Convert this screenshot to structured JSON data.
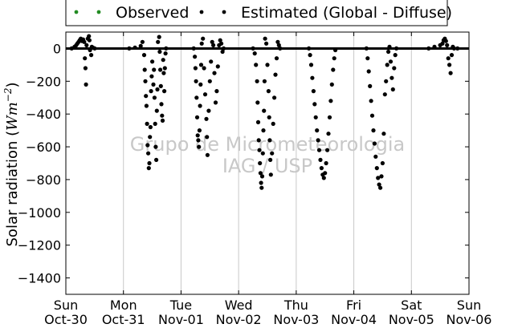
{
  "chart_data": {
    "type": "scatter",
    "title": "",
    "xlabel": "",
    "ylabel_prefix": "Solar radiation (",
    "ylabel_unit_base": "Wm",
    "ylabel_unit_exp": "−2",
    "ylabel_suffix": ")",
    "ylim": [
      -1500,
      100
    ],
    "xlim": [
      0,
      7
    ],
    "grid": "vertical",
    "legend_placement": "top-center",
    "watermark": [
      "Grupo de Micrometeorologia",
      "IAG / USP"
    ],
    "y_ticks": [
      0,
      -200,
      -400,
      -600,
      -800,
      -1000,
      -1200,
      -1400
    ],
    "x_ticks": [
      {
        "pos": 0,
        "day": "Sun",
        "date": "Oct-30"
      },
      {
        "pos": 1,
        "day": "Mon",
        "date": "Oct-31"
      },
      {
        "pos": 2,
        "day": "Tue",
        "date": "Nov-01"
      },
      {
        "pos": 3,
        "day": "Wed",
        "date": "Nov-02"
      },
      {
        "pos": 4,
        "day": "Thu",
        "date": "Nov-03"
      },
      {
        "pos": 5,
        "day": "Fri",
        "date": "Nov-04"
      },
      {
        "pos": 6,
        "day": "Sat",
        "date": "Nov-05"
      },
      {
        "pos": 7,
        "day": "Sun",
        "date": "Nov-06"
      }
    ],
    "series": [
      {
        "name": "Observed",
        "color": "#228b22",
        "points": []
      },
      {
        "name": "Estimated (Global - Diffuse)",
        "color": "#000000",
        "points": [
          [
            0.1,
            0
          ],
          [
            0.15,
            10
          ],
          [
            0.18,
            20
          ],
          [
            0.2,
            30
          ],
          [
            0.22,
            40
          ],
          [
            0.24,
            50
          ],
          [
            0.26,
            60
          ],
          [
            0.28,
            45
          ],
          [
            0.3,
            55
          ],
          [
            0.32,
            40
          ],
          [
            0.33,
            -60
          ],
          [
            0.34,
            -120
          ],
          [
            0.35,
            -220
          ],
          [
            0.36,
            20
          ],
          [
            0.38,
            60
          ],
          [
            0.4,
            75
          ],
          [
            0.41,
            50
          ],
          [
            0.42,
            -10
          ],
          [
            0.44,
            -40
          ],
          [
            0.45,
            10
          ],
          [
            0.47,
            5
          ],
          [
            0.5,
            0
          ],
          [
            1.1,
            0
          ],
          [
            1.2,
            5
          ],
          [
            1.3,
            15
          ],
          [
            1.33,
            40
          ],
          [
            1.36,
            -40
          ],
          [
            1.37,
            -130
          ],
          [
            1.38,
            -200
          ],
          [
            1.39,
            -290
          ],
          [
            1.4,
            -350
          ],
          [
            1.41,
            -460
          ],
          [
            1.42,
            -590
          ],
          [
            1.43,
            -640
          ],
          [
            1.44,
            -730
          ],
          [
            1.45,
            -700
          ],
          [
            1.46,
            -540
          ],
          [
            1.47,
            -480
          ],
          [
            1.48,
            -260
          ],
          [
            1.49,
            -170
          ],
          [
            1.5,
            -80
          ],
          [
            1.52,
            -220
          ],
          [
            1.53,
            -130
          ],
          [
            1.54,
            -300
          ],
          [
            1.55,
            -460
          ],
          [
            1.56,
            -600
          ],
          [
            1.57,
            -680
          ],
          [
            1.58,
            -380
          ],
          [
            1.59,
            -250
          ],
          [
            1.6,
            40
          ],
          [
            1.62,
            70
          ],
          [
            1.63,
            -20
          ],
          [
            1.64,
            -130
          ],
          [
            1.65,
            -230
          ],
          [
            1.66,
            -340
          ],
          [
            1.67,
            -410
          ],
          [
            1.68,
            -440
          ],
          [
            1.69,
            -70
          ],
          [
            1.7,
            -150
          ],
          [
            1.71,
            -260
          ],
          [
            1.72,
            -120
          ],
          [
            1.73,
            -30
          ],
          [
            1.74,
            0
          ],
          [
            2.22,
            0
          ],
          [
            2.24,
            -50
          ],
          [
            2.25,
            -120
          ],
          [
            2.26,
            -200
          ],
          [
            2.27,
            -300
          ],
          [
            2.28,
            -420
          ],
          [
            2.29,
            -530
          ],
          [
            2.3,
            -560
          ],
          [
            2.31,
            -600
          ],
          [
            2.32,
            -500
          ],
          [
            2.33,
            -350
          ],
          [
            2.34,
            -220
          ],
          [
            2.35,
            -100
          ],
          [
            2.36,
            30
          ],
          [
            2.38,
            60
          ],
          [
            2.4,
            -120
          ],
          [
            2.42,
            -280
          ],
          [
            2.44,
            -430
          ],
          [
            2.45,
            -540
          ],
          [
            2.46,
            -650
          ],
          [
            2.48,
            -380
          ],
          [
            2.5,
            -200
          ],
          [
            2.52,
            -80
          ],
          [
            2.54,
            40
          ],
          [
            2.56,
            20
          ],
          [
            2.58,
            -150
          ],
          [
            2.6,
            -330
          ],
          [
            2.62,
            -260
          ],
          [
            2.64,
            -110
          ],
          [
            2.66,
            20
          ],
          [
            2.68,
            50
          ],
          [
            2.7,
            30
          ],
          [
            2.72,
            -20
          ],
          [
            2.74,
            0
          ],
          [
            3.25,
            0
          ],
          [
            3.28,
            -30
          ],
          [
            3.3,
            -100
          ],
          [
            3.32,
            -200
          ],
          [
            3.33,
            -330
          ],
          [
            3.34,
            -450
          ],
          [
            3.35,
            -560
          ],
          [
            3.36,
            -620
          ],
          [
            3.37,
            -700
          ],
          [
            3.38,
            -760
          ],
          [
            3.39,
            -820
          ],
          [
            3.4,
            -850
          ],
          [
            3.41,
            -780
          ],
          [
            3.42,
            -640
          ],
          [
            3.43,
            -500
          ],
          [
            3.44,
            -380
          ],
          [
            3.45,
            -200
          ],
          [
            3.46,
            60
          ],
          [
            3.48,
            30
          ],
          [
            3.5,
            -100
          ],
          [
            3.52,
            -260
          ],
          [
            3.53,
            -420
          ],
          [
            3.54,
            -560
          ],
          [
            3.55,
            -680
          ],
          [
            3.56,
            -770
          ],
          [
            3.58,
            -640
          ],
          [
            3.6,
            -460
          ],
          [
            3.62,
            -300
          ],
          [
            3.64,
            -160
          ],
          [
            3.66,
            -60
          ],
          [
            3.68,
            40
          ],
          [
            3.7,
            20
          ],
          [
            3.72,
            0
          ],
          [
            4.22,
            0
          ],
          [
            4.24,
            -40
          ],
          [
            4.26,
            -100
          ],
          [
            4.28,
            -180
          ],
          [
            4.3,
            -260
          ],
          [
            4.32,
            -340
          ],
          [
            4.34,
            -420
          ],
          [
            4.36,
            -500
          ],
          [
            4.38,
            -560
          ],
          [
            4.4,
            -620
          ],
          [
            4.42,
            -680
          ],
          [
            4.44,
            -730
          ],
          [
            4.46,
            -770
          ],
          [
            4.48,
            -790
          ],
          [
            4.5,
            -760
          ],
          [
            4.52,
            -700
          ],
          [
            4.54,
            -620
          ],
          [
            4.56,
            -520
          ],
          [
            4.58,
            -420
          ],
          [
            4.6,
            -320
          ],
          [
            4.62,
            -220
          ],
          [
            4.64,
            -130
          ],
          [
            4.66,
            -60
          ],
          [
            4.68,
            -10
          ],
          [
            5.22,
            0
          ],
          [
            5.24,
            -60
          ],
          [
            5.26,
            -140
          ],
          [
            5.28,
            -230
          ],
          [
            5.3,
            -320
          ],
          [
            5.32,
            -410
          ],
          [
            5.34,
            -500
          ],
          [
            5.36,
            -580
          ],
          [
            5.38,
            -660
          ],
          [
            5.4,
            -730
          ],
          [
            5.42,
            -790
          ],
          [
            5.44,
            -830
          ],
          [
            5.46,
            -850
          ],
          [
            5.48,
            -780
          ],
          [
            5.5,
            -700
          ],
          [
            5.52,
            -520
          ],
          [
            5.54,
            -280
          ],
          [
            5.56,
            -200
          ],
          [
            5.58,
            -100
          ],
          [
            5.6,
            -20
          ],
          [
            5.62,
            10
          ],
          [
            5.64,
            -80
          ],
          [
            5.66,
            -180
          ],
          [
            5.68,
            -250
          ],
          [
            5.7,
            -120
          ],
          [
            5.72,
            -40
          ],
          [
            5.74,
            0
          ],
          [
            6.3,
            0
          ],
          [
            6.4,
            10
          ],
          [
            6.5,
            20
          ],
          [
            6.54,
            30
          ],
          [
            6.56,
            50
          ],
          [
            6.58,
            60
          ],
          [
            6.6,
            45
          ],
          [
            6.62,
            20
          ],
          [
            6.64,
            -60
          ],
          [
            6.66,
            -100
          ],
          [
            6.68,
            -150
          ],
          [
            6.7,
            -40
          ],
          [
            6.72,
            10
          ],
          [
            6.74,
            0
          ],
          [
            6.8,
            0
          ]
        ]
      }
    ]
  }
}
